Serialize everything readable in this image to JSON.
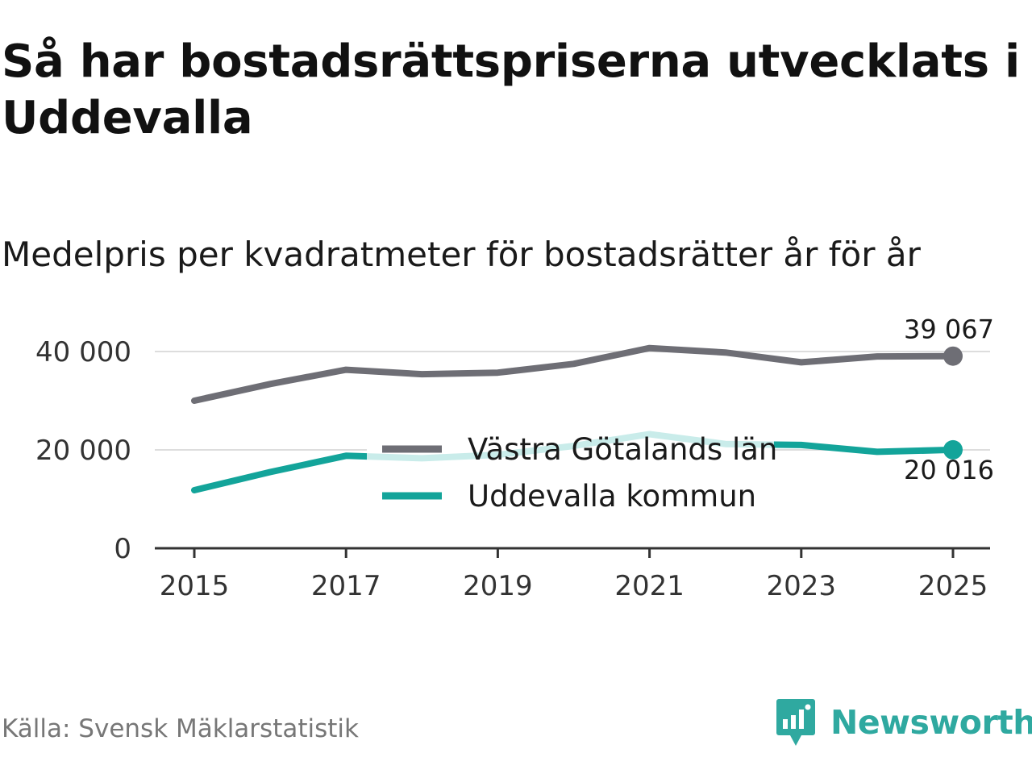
{
  "title": "Så har bostadsrättspriserna utvecklats i Uddevalla",
  "subtitle": "Medelpris per kvadratmeter för bostadsrätter år för år",
  "source": "Källa: Svensk Mäklarstatistik",
  "brand": "Newsworthy",
  "colors": {
    "series1": "#6e6e75",
    "series2": "#13a49a",
    "series2_light": "#c9ecea",
    "grid": "#dddddd",
    "axis": "#333333",
    "brand": "#2fa9a0"
  },
  "chart_data": {
    "type": "line",
    "title": "Medelpris per kvadratmeter för bostadsrätter år för år",
    "x": [
      2015,
      2016,
      2017,
      2018,
      2019,
      2020,
      2021,
      2022,
      2023,
      2024,
      2025
    ],
    "series": [
      {
        "name": "Västra Götalands län",
        "values": [
          30000,
          33400,
          36300,
          35400,
          35700,
          37500,
          40700,
          39800,
          37800,
          39000,
          39067
        ],
        "end_label": "39 067"
      },
      {
        "name": "Uddevalla kommun",
        "values": [
          11800,
          15500,
          18800,
          18300,
          19000,
          20800,
          23200,
          21200,
          21000,
          19600,
          20016
        ],
        "end_label": "20 016"
      }
    ],
    "xticks": [
      "2015",
      "2017",
      "2019",
      "2021",
      "2023",
      "2025"
    ],
    "yticks": [
      "0",
      "20 000",
      "40 000"
    ],
    "ylim": [
      0,
      40000
    ],
    "legend_position": "center"
  }
}
